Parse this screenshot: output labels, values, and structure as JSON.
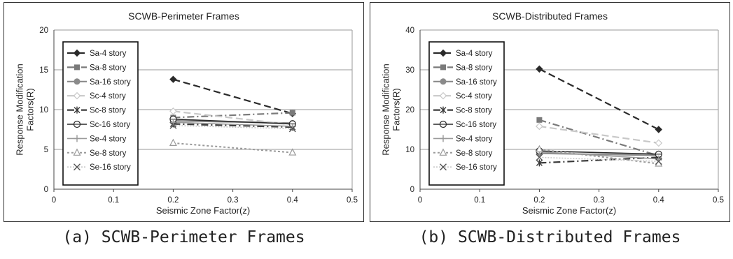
{
  "captions": {
    "a": "(a) SCWB-Perimeter Frames",
    "b": "(b) SCWB-Distributed Frames"
  },
  "series_styles": [
    {
      "name": "Sa-4 story",
      "color": "#2a2a2a",
      "dash": "10,5",
      "width": 2.2,
      "marker": "diamond-filled"
    },
    {
      "name": "Sa-8 story",
      "color": "#7a7a7a",
      "dash": "10,4,2,4",
      "width": 2.2,
      "marker": "square-filled"
    },
    {
      "name": "Sa-16 story",
      "color": "#8a8a8a",
      "dash": "",
      "width": 2.2,
      "marker": "circle-filled"
    },
    {
      "name": "Sc-4 story",
      "color": "#c8c8c8",
      "dash": "10,5",
      "width": 2.2,
      "marker": "diamond-open"
    },
    {
      "name": "Sc-8 story",
      "color": "#3a3a3a",
      "dash": "10,4,2,4",
      "width": 2.2,
      "marker": "asterisk"
    },
    {
      "name": "Sc-16 story",
      "color": "#2a2a2a",
      "dash": "",
      "width": 1.6,
      "marker": "circle-open-bar"
    },
    {
      "name": "Se-4 story",
      "color": "#9a9a9a",
      "dash": "",
      "width": 1.6,
      "marker": "plus"
    },
    {
      "name": "Se-8 story",
      "color": "#9a9a9a",
      "dash": "3,3",
      "width": 2.0,
      "marker": "triangle-open"
    },
    {
      "name": "Se-16 story",
      "color": "#c8c8c8",
      "dash": "2,2",
      "width": 1.6,
      "marker": "x"
    }
  ],
  "chart_data": [
    {
      "type": "line",
      "title": "SCWB-Perimeter Frames",
      "xlabel": "Seismic Zone Factor(z)",
      "ylabel": "Response Modification Factors(R)",
      "xlim": [
        0,
        0.5
      ],
      "ylim": [
        0,
        20
      ],
      "xticks": [
        0,
        0.1,
        0.2,
        0.3,
        0.4,
        0.5
      ],
      "yticks": [
        0,
        5,
        10,
        15,
        20
      ],
      "xtick_labels": [
        "0",
        "0.1",
        "0.2",
        "0.3",
        "0.4",
        "0.5"
      ],
      "ytick_labels": [
        "0",
        "5",
        "10",
        "15",
        "20"
      ],
      "grid": true,
      "legend_position": "left",
      "x": [
        0.2,
        0.4
      ],
      "series": [
        {
          "name": "Sa-4 story",
          "values": [
            13.8,
            9.5
          ]
        },
        {
          "name": "Sa-8 story",
          "values": [
            9.0,
            9.6
          ]
        },
        {
          "name": "Sa-16 story",
          "values": [
            8.6,
            8.3
          ]
        },
        {
          "name": "Sc-4 story",
          "values": [
            9.8,
            8.1
          ]
        },
        {
          "name": "Sc-8 story",
          "values": [
            8.2,
            7.8
          ]
        },
        {
          "name": "Sc-16 story",
          "values": [
            8.8,
            8.2
          ]
        },
        {
          "name": "Se-4 story",
          "values": [
            8.4,
            7.9
          ]
        },
        {
          "name": "Se-8 story",
          "values": [
            5.8,
            4.6
          ]
        },
        {
          "name": "Se-16 story",
          "values": [
            8.0,
            7.6
          ]
        }
      ]
    },
    {
      "type": "line",
      "title": "SCWB-Distributed Frames",
      "xlabel": "Seismic Zone Factor(z)",
      "ylabel": "Response Modification Factors(R)",
      "xlim": [
        0,
        0.5
      ],
      "ylim": [
        0,
        40
      ],
      "xticks": [
        0,
        0.1,
        0.2,
        0.3,
        0.4,
        0.5
      ],
      "yticks": [
        0,
        10,
        20,
        30,
        40
      ],
      "xtick_labels": [
        "0",
        "0.1",
        "0.2",
        "0.3",
        "0.4",
        "0.5"
      ],
      "ytick_labels": [
        "0",
        "10",
        "20",
        "30",
        "40"
      ],
      "grid": true,
      "legend_position": "left",
      "x": [
        0.2,
        0.4
      ],
      "series": [
        {
          "name": "Sa-4 story",
          "values": [
            30.2,
            15.0
          ]
        },
        {
          "name": "Sa-8 story",
          "values": [
            17.4,
            8.4
          ]
        },
        {
          "name": "Sa-16 story",
          "values": [
            9.0,
            8.5
          ]
        },
        {
          "name": "Sc-4 story",
          "values": [
            15.8,
            11.6
          ]
        },
        {
          "name": "Sc-8 story",
          "values": [
            6.6,
            8.0
          ]
        },
        {
          "name": "Sc-16 story",
          "values": [
            9.6,
            8.8
          ]
        },
        {
          "name": "Se-4 story",
          "values": [
            9.4,
            7.6
          ]
        },
        {
          "name": "Se-8 story",
          "values": [
            10.0,
            6.4
          ]
        },
        {
          "name": "Se-16 story",
          "values": [
            8.0,
            7.0
          ]
        }
      ]
    }
  ]
}
